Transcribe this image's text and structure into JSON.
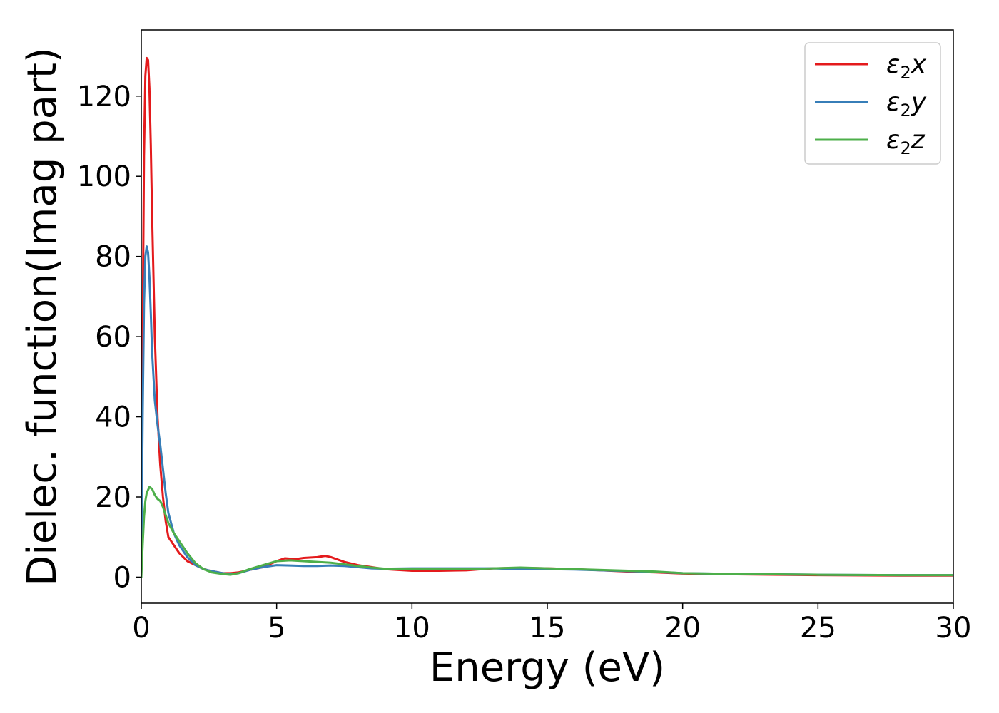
{
  "chart_data": {
    "type": "line",
    "xlabel": "Energy (eV)",
    "ylabel": "Dielec. function(Imag part)",
    "xlim": [
      0,
      30
    ],
    "ylim": [
      -6.5,
      136.5
    ],
    "xticks": [
      0,
      5,
      10,
      15,
      20,
      25,
      30
    ],
    "yticks": [
      0,
      20,
      40,
      60,
      80,
      100,
      120
    ],
    "xtick_labels": [
      "0",
      "5",
      "10",
      "15",
      "20",
      "25",
      "30"
    ],
    "ytick_labels": [
      "0",
      "20",
      "40",
      "60",
      "80",
      "100",
      "120"
    ],
    "grid": false,
    "legend_position": "top-right",
    "series": [
      {
        "name": "ε₂x",
        "base": "ε",
        "sub": "2",
        "var": "x",
        "color": "#e41a1c",
        "x": [
          0,
          0.05,
          0.1,
          0.15,
          0.2,
          0.25,
          0.3,
          0.35,
          0.4,
          0.5,
          0.6,
          0.7,
          0.8,
          0.9,
          1.0,
          1.2,
          1.4,
          1.7,
          2.0,
          2.3,
          2.6,
          3.0,
          3.3,
          3.6,
          4.0,
          4.5,
          5.0,
          5.3,
          5.7,
          6.0,
          6.5,
          6.8,
          7.0,
          7.5,
          8.0,
          8.5,
          9.0,
          10.0,
          11.0,
          12.0,
          13.0,
          14.0,
          15.0,
          16.0,
          17.0,
          18.0,
          19.0,
          20.0,
          22.0,
          25.0,
          28.0,
          30.0
        ],
        "y": [
          0,
          60,
          105,
          125,
          129.5,
          129,
          122,
          108,
          90,
          60,
          40,
          28,
          20,
          14,
          10,
          8,
          6,
          4,
          3,
          2,
          1.5,
          1,
          1,
          1.2,
          1.8,
          2.5,
          4.0,
          4.7,
          4.5,
          4.8,
          5.0,
          5.3,
          5.0,
          3.8,
          3.0,
          2.5,
          2.0,
          1.6,
          1.6,
          1.7,
          2.2,
          2.3,
          2.2,
          2.0,
          1.7,
          1.4,
          1.2,
          0.9,
          0.7,
          0.5,
          0.4,
          0.4
        ]
      },
      {
        "name": "ε₂y",
        "base": "ε",
        "sub": "2",
        "var": "y",
        "color": "#377eb8",
        "x": [
          0,
          0.05,
          0.1,
          0.15,
          0.2,
          0.25,
          0.3,
          0.35,
          0.4,
          0.5,
          0.6,
          0.7,
          0.8,
          0.9,
          1.0,
          1.2,
          1.4,
          1.7,
          2.0,
          2.3,
          2.6,
          3.0,
          3.3,
          3.6,
          4.0,
          4.5,
          5.0,
          5.5,
          6.0,
          6.5,
          7.0,
          7.5,
          8.0,
          8.5,
          9.0,
          10.0,
          11.0,
          12.0,
          13.0,
          14.0,
          15.0,
          16.0,
          17.0,
          18.0,
          19.0,
          20.0,
          22.0,
          25.0,
          28.0,
          30.0
        ],
        "y": [
          0,
          40,
          68,
          80,
          82.5,
          81,
          75,
          66,
          56,
          44,
          38,
          33,
          27,
          21,
          16,
          11,
          8,
          5,
          3,
          2,
          1.5,
          1,
          0.8,
          1.0,
          1.8,
          2.5,
          3.0,
          2.9,
          2.8,
          2.8,
          2.9,
          2.8,
          2.5,
          2.2,
          2.1,
          2.2,
          2.2,
          2.2,
          2.2,
          2.0,
          2.0,
          1.9,
          1.7,
          1.5,
          1.3,
          1.0,
          0.8,
          0.6,
          0.5,
          0.5
        ]
      },
      {
        "name": "ε₂z",
        "base": "ε",
        "sub": "2",
        "var": "z",
        "color": "#4daf4a",
        "x": [
          0,
          0.05,
          0.1,
          0.15,
          0.2,
          0.3,
          0.4,
          0.5,
          0.6,
          0.7,
          0.8,
          0.9,
          1.0,
          1.2,
          1.4,
          1.7,
          2.0,
          2.3,
          2.6,
          3.0,
          3.3,
          3.6,
          4.0,
          4.5,
          5.0,
          5.5,
          6.0,
          6.5,
          7.0,
          7.5,
          8.0,
          8.5,
          9.0,
          10.0,
          11.0,
          12.0,
          13.0,
          14.0,
          15.0,
          16.0,
          17.0,
          18.0,
          19.0,
          20.0,
          22.0,
          25.0,
          28.0,
          30.0
        ],
        "y": [
          0,
          8,
          15,
          19,
          21,
          22.5,
          22,
          20.5,
          19.5,
          19,
          17.5,
          15.5,
          13.5,
          11,
          9,
          6,
          3.5,
          2,
          1.2,
          0.8,
          0.6,
          1.0,
          2.0,
          3.0,
          4.0,
          4.2,
          4.0,
          3.8,
          3.6,
          3.2,
          2.8,
          2.4,
          2.1,
          2.0,
          2.0,
          2.0,
          2.2,
          2.4,
          2.2,
          2.0,
          1.8,
          1.6,
          1.4,
          1.0,
          0.8,
          0.6,
          0.5,
          0.5
        ]
      }
    ]
  }
}
